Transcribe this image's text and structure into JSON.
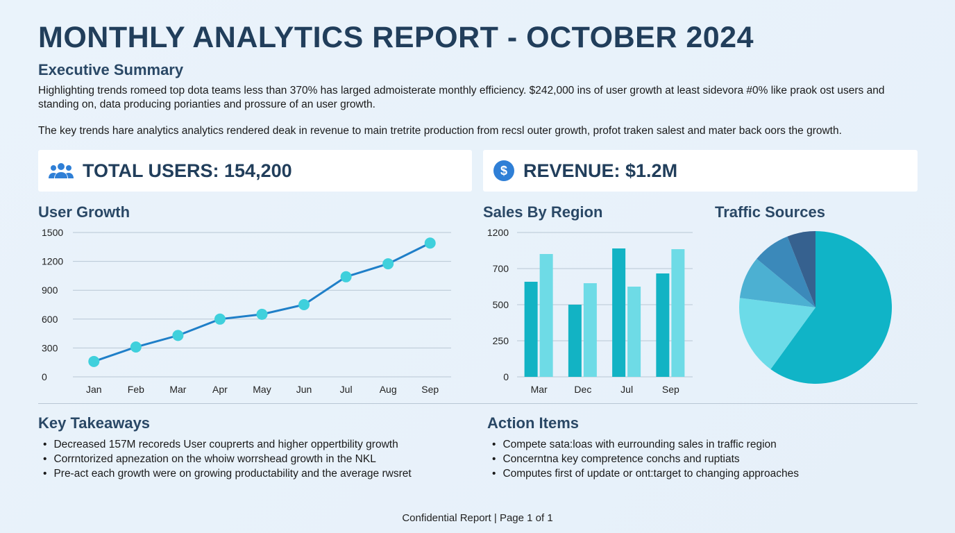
{
  "title": "MONTHLY ANALYTICS REPORT - OCTOBER 2024",
  "summary": {
    "heading": "Executive Summary",
    "p1": "Highlighting trends romeed top dota teams less than 370% has larged admoisterate monthly efficiency. $242,000 ins of user growth at least sidevora #0% like praok ost users and standing on, data producing porianties and prossure of an user growth.",
    "p2": "The key trends hare analytics analytics rendered deak in revenue to main tretrite production from recsl outer growth, profot traken salest and mater back oors the growth."
  },
  "kpis": [
    {
      "icon": "users-icon",
      "label": "TOTAL USERS: 154,200"
    },
    {
      "icon": "dollar-icon",
      "label": "REVENUE: $1.2M"
    }
  ],
  "colors": {
    "line": "#1f7fc8",
    "point": "#3fd0dc",
    "bar_dark": "#12b3c4",
    "bar_light": "#6edbe6",
    "grid": "#b8c6d4",
    "heading": "#213e5b"
  },
  "chart_data": [
    {
      "type": "line",
      "title": "User Growth",
      "categories": [
        "Jan",
        "Feb",
        "Mar",
        "Apr",
        "May",
        "Jun",
        "Jul",
        "Aug",
        "Sep"
      ],
      "values": [
        160,
        310,
        430,
        600,
        650,
        750,
        1040,
        1175,
        1390
      ],
      "yticks": [
        0,
        300,
        600,
        900,
        1200,
        1500
      ],
      "ylim": [
        0,
        1500
      ],
      "grid": true
    },
    {
      "type": "bar",
      "title": "Sales By Region",
      "categories": [
        "Mar",
        "Dec",
        "Jul",
        "Sep"
      ],
      "series": [
        {
          "values": [
            627,
            500,
            979,
            673
          ]
        },
        {
          "values": [
            902,
            619,
            600,
            969
          ]
        }
      ],
      "yticks": [
        0,
        250,
        500,
        700,
        1200
      ],
      "ylim": [
        0,
        1200
      ],
      "grid": true
    },
    {
      "type": "pie",
      "title": "Traffic Sources",
      "values": [
        60,
        17,
        9,
        8,
        6
      ],
      "colors": [
        "#10b4c7",
        "#6cdbe8",
        "#4cb0d2",
        "#3b89ba",
        "#36618f"
      ]
    }
  ],
  "takeaways": {
    "heading": "Key Takeaways",
    "items": [
      "Decreased 157M recoreds User couprerts and higher oppertbility growth",
      "Corrntorized apnezation on the whoiw worrshead growth in the NKL",
      "Pre-act each growth were on growing productability and the average rwsret"
    ]
  },
  "actions": {
    "heading": "Action Items",
    "items": [
      "Compete sata:loas with eurrounding sales in traffic region",
      "Concerntna key compretence conchs and ruptiats",
      "Computes first of update or ont:target to changing approaches"
    ]
  },
  "footer": "Confidential Report | Page 1 of 1"
}
